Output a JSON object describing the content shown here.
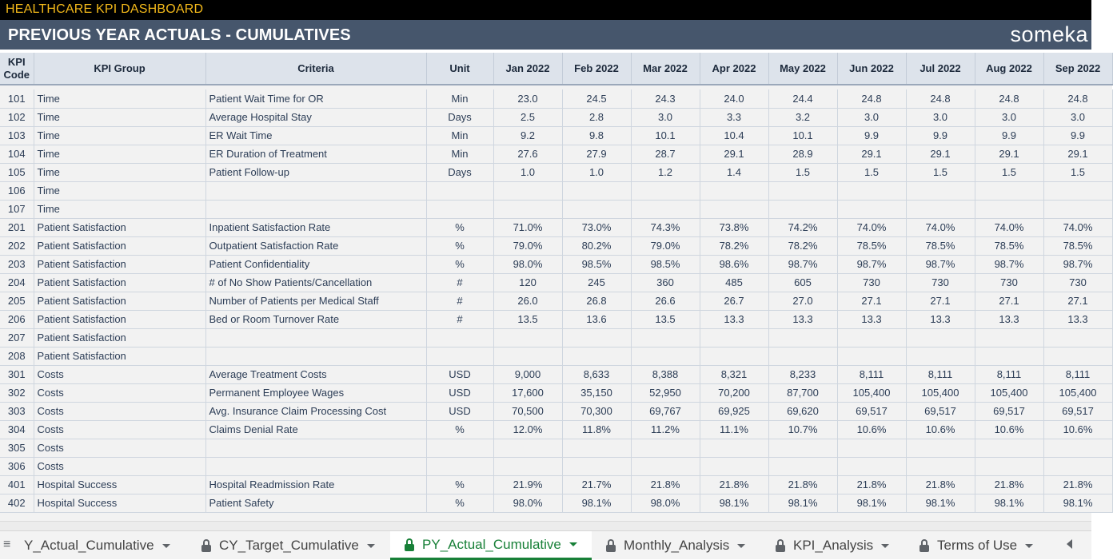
{
  "app_title": "HEALTHCARE KPI DASHBOARD",
  "page_title": "PREVIOUS YEAR ACTUALS - CUMULATIVES",
  "logo_text": "someka",
  "colors": {
    "title_bar": "#000000",
    "title_text": "#f3b91a",
    "header_bar": "#46566c",
    "active_tab": "#188038"
  },
  "table": {
    "headers": {
      "code": "KPI\nCode",
      "group": "KPI Group",
      "criteria": "Criteria",
      "unit": "Unit",
      "months": [
        "Jan 2022",
        "Feb 2022",
        "Mar 2022",
        "Apr 2022",
        "May 2022",
        "Jun 2022",
        "Jul 2022",
        "Aug 2022",
        "Sep 2022"
      ]
    },
    "rows": [
      {
        "code": "101",
        "group": "Time",
        "criteria": "Patient Wait Time for OR",
        "unit": "Min",
        "values": [
          "23.0",
          "24.5",
          "24.3",
          "24.0",
          "24.4",
          "24.8",
          "24.8",
          "24.8",
          "24.8"
        ]
      },
      {
        "code": "102",
        "group": "Time",
        "criteria": "Average Hospital Stay",
        "unit": "Days",
        "values": [
          "2.5",
          "2.8",
          "3.0",
          "3.3",
          "3.2",
          "3.0",
          "3.0",
          "3.0",
          "3.0"
        ]
      },
      {
        "code": "103",
        "group": "Time",
        "criteria": "ER Wait Time",
        "unit": "Min",
        "values": [
          "9.2",
          "9.8",
          "10.1",
          "10.4",
          "10.1",
          "9.9",
          "9.9",
          "9.9",
          "9.9"
        ]
      },
      {
        "code": "104",
        "group": "Time",
        "criteria": "ER Duration of Treatment",
        "unit": "Min",
        "values": [
          "27.6",
          "27.9",
          "28.7",
          "29.1",
          "28.9",
          "29.1",
          "29.1",
          "29.1",
          "29.1"
        ]
      },
      {
        "code": "105",
        "group": "Time",
        "criteria": "Patient Follow-up",
        "unit": "Days",
        "values": [
          "1.0",
          "1.0",
          "1.2",
          "1.4",
          "1.5",
          "1.5",
          "1.5",
          "1.5",
          "1.5"
        ]
      },
      {
        "code": "106",
        "group": "Time",
        "criteria": "",
        "unit": "",
        "values": [
          "",
          "",
          "",
          "",
          "",
          "",
          "",
          "",
          ""
        ]
      },
      {
        "code": "107",
        "group": "Time",
        "criteria": "",
        "unit": "",
        "values": [
          "",
          "",
          "",
          "",
          "",
          "",
          "",
          "",
          ""
        ]
      },
      {
        "code": "201",
        "group": "Patient Satisfaction",
        "criteria": "Inpatient Satisfaction Rate",
        "unit": "%",
        "values": [
          "71.0%",
          "73.0%",
          "74.3%",
          "73.8%",
          "74.2%",
          "74.0%",
          "74.0%",
          "74.0%",
          "74.0%"
        ]
      },
      {
        "code": "202",
        "group": "Patient Satisfaction",
        "criteria": "Outpatient Satisfaction Rate",
        "unit": "%",
        "values": [
          "79.0%",
          "80.2%",
          "79.0%",
          "78.2%",
          "78.2%",
          "78.5%",
          "78.5%",
          "78.5%",
          "78.5%"
        ]
      },
      {
        "code": "203",
        "group": "Patient Satisfaction",
        "criteria": "Patient Confidentiality",
        "unit": "%",
        "values": [
          "98.0%",
          "98.5%",
          "98.5%",
          "98.6%",
          "98.7%",
          "98.7%",
          "98.7%",
          "98.7%",
          "98.7%"
        ]
      },
      {
        "code": "204",
        "group": "Patient Satisfaction",
        "criteria": "# of No Show Patients/Cancellation",
        "unit": "#",
        "values": [
          "120",
          "245",
          "360",
          "485",
          "605",
          "730",
          "730",
          "730",
          "730"
        ]
      },
      {
        "code": "205",
        "group": "Patient Satisfaction",
        "criteria": "Number of Patients per Medical Staff",
        "unit": "#",
        "values": [
          "26.0",
          "26.8",
          "26.6",
          "26.7",
          "27.0",
          "27.1",
          "27.1",
          "27.1",
          "27.1"
        ]
      },
      {
        "code": "206",
        "group": "Patient Satisfaction",
        "criteria": "Bed or Room Turnover Rate",
        "unit": "#",
        "values": [
          "13.5",
          "13.6",
          "13.5",
          "13.3",
          "13.3",
          "13.3",
          "13.3",
          "13.3",
          "13.3"
        ]
      },
      {
        "code": "207",
        "group": "Patient Satisfaction",
        "criteria": "",
        "unit": "",
        "values": [
          "",
          "",
          "",
          "",
          "",
          "",
          "",
          "",
          ""
        ]
      },
      {
        "code": "208",
        "group": "Patient Satisfaction",
        "criteria": "",
        "unit": "",
        "values": [
          "",
          "",
          "",
          "",
          "",
          "",
          "",
          "",
          ""
        ]
      },
      {
        "code": "301",
        "group": "Costs",
        "criteria": "Average Treatment Costs",
        "unit": "USD",
        "values": [
          "9,000",
          "8,633",
          "8,388",
          "8,321",
          "8,233",
          "8,111",
          "8,111",
          "8,111",
          "8,111"
        ]
      },
      {
        "code": "302",
        "group": "Costs",
        "criteria": "Permanent Employee Wages",
        "unit": "USD",
        "values": [
          "17,600",
          "35,150",
          "52,950",
          "70,200",
          "87,700",
          "105,400",
          "105,400",
          "105,400",
          "105,400"
        ]
      },
      {
        "code": "303",
        "group": "Costs",
        "criteria": "Avg. Insurance Claim Processing Cost",
        "unit": "USD",
        "values": [
          "70,500",
          "70,300",
          "69,767",
          "69,925",
          "69,620",
          "69,517",
          "69,517",
          "69,517",
          "69,517"
        ]
      },
      {
        "code": "304",
        "group": "Costs",
        "criteria": "Claims Denial Rate",
        "unit": "%",
        "values": [
          "12.0%",
          "11.8%",
          "11.2%",
          "11.1%",
          "10.7%",
          "10.6%",
          "10.6%",
          "10.6%",
          "10.6%"
        ]
      },
      {
        "code": "305",
        "group": "Costs",
        "criteria": "",
        "unit": "",
        "values": [
          "",
          "",
          "",
          "",
          "",
          "",
          "",
          "",
          ""
        ]
      },
      {
        "code": "306",
        "group": "Costs",
        "criteria": "",
        "unit": "",
        "values": [
          "",
          "",
          "",
          "",
          "",
          "",
          "",
          "",
          ""
        ]
      },
      {
        "code": "401",
        "group": "Hospital Success",
        "criteria": "Hospital Readmission Rate",
        "unit": "%",
        "values": [
          "21.9%",
          "21.7%",
          "21.8%",
          "21.8%",
          "21.8%",
          "21.8%",
          "21.8%",
          "21.8%",
          "21.8%"
        ]
      },
      {
        "code": "402",
        "group": "Hospital Success",
        "criteria": "Patient Safety",
        "unit": "%",
        "values": [
          "98.0%",
          "98.1%",
          "98.0%",
          "98.1%",
          "98.1%",
          "98.1%",
          "98.1%",
          "98.1%",
          "98.1%"
        ]
      }
    ]
  },
  "tabs": [
    {
      "label": "Y_Actual_Cumulative",
      "locked": false,
      "active": false
    },
    {
      "label": "CY_Target_Cumulative",
      "locked": true,
      "active": false
    },
    {
      "label": "PY_Actual_Cumulative",
      "locked": true,
      "active": true
    },
    {
      "label": "Monthly_Analysis",
      "locked": true,
      "active": false
    },
    {
      "label": "KPI_Analysis",
      "locked": true,
      "active": false
    },
    {
      "label": "Terms of Use",
      "locked": true,
      "active": false
    }
  ]
}
